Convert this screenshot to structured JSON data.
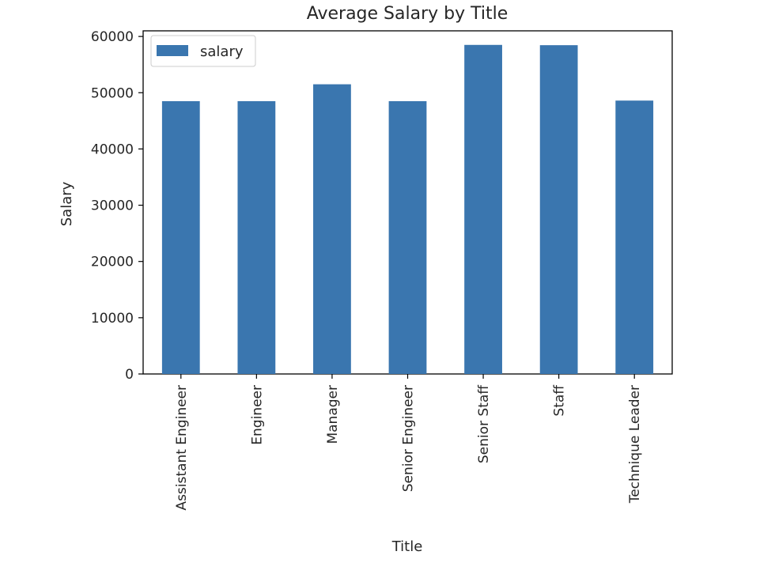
{
  "chart_data": {
    "type": "bar",
    "title": "Average Salary by Title",
    "xlabel": "Title",
    "ylabel": "Salary",
    "categories": [
      "Assistant Engineer",
      "Engineer",
      "Manager",
      "Senior Engineer",
      "Senior Staff",
      "Staff",
      "Technique Leader"
    ],
    "series": [
      {
        "name": "salary",
        "values": [
          48500,
          48500,
          51500,
          48500,
          58500,
          58450,
          48600
        ],
        "color": "#3a76af"
      }
    ],
    "ylim": [
      0,
      61000
    ],
    "yticks": [
      0,
      10000,
      20000,
      30000,
      40000,
      50000,
      60000
    ],
    "grid": false,
    "legend_position": "top-left"
  }
}
